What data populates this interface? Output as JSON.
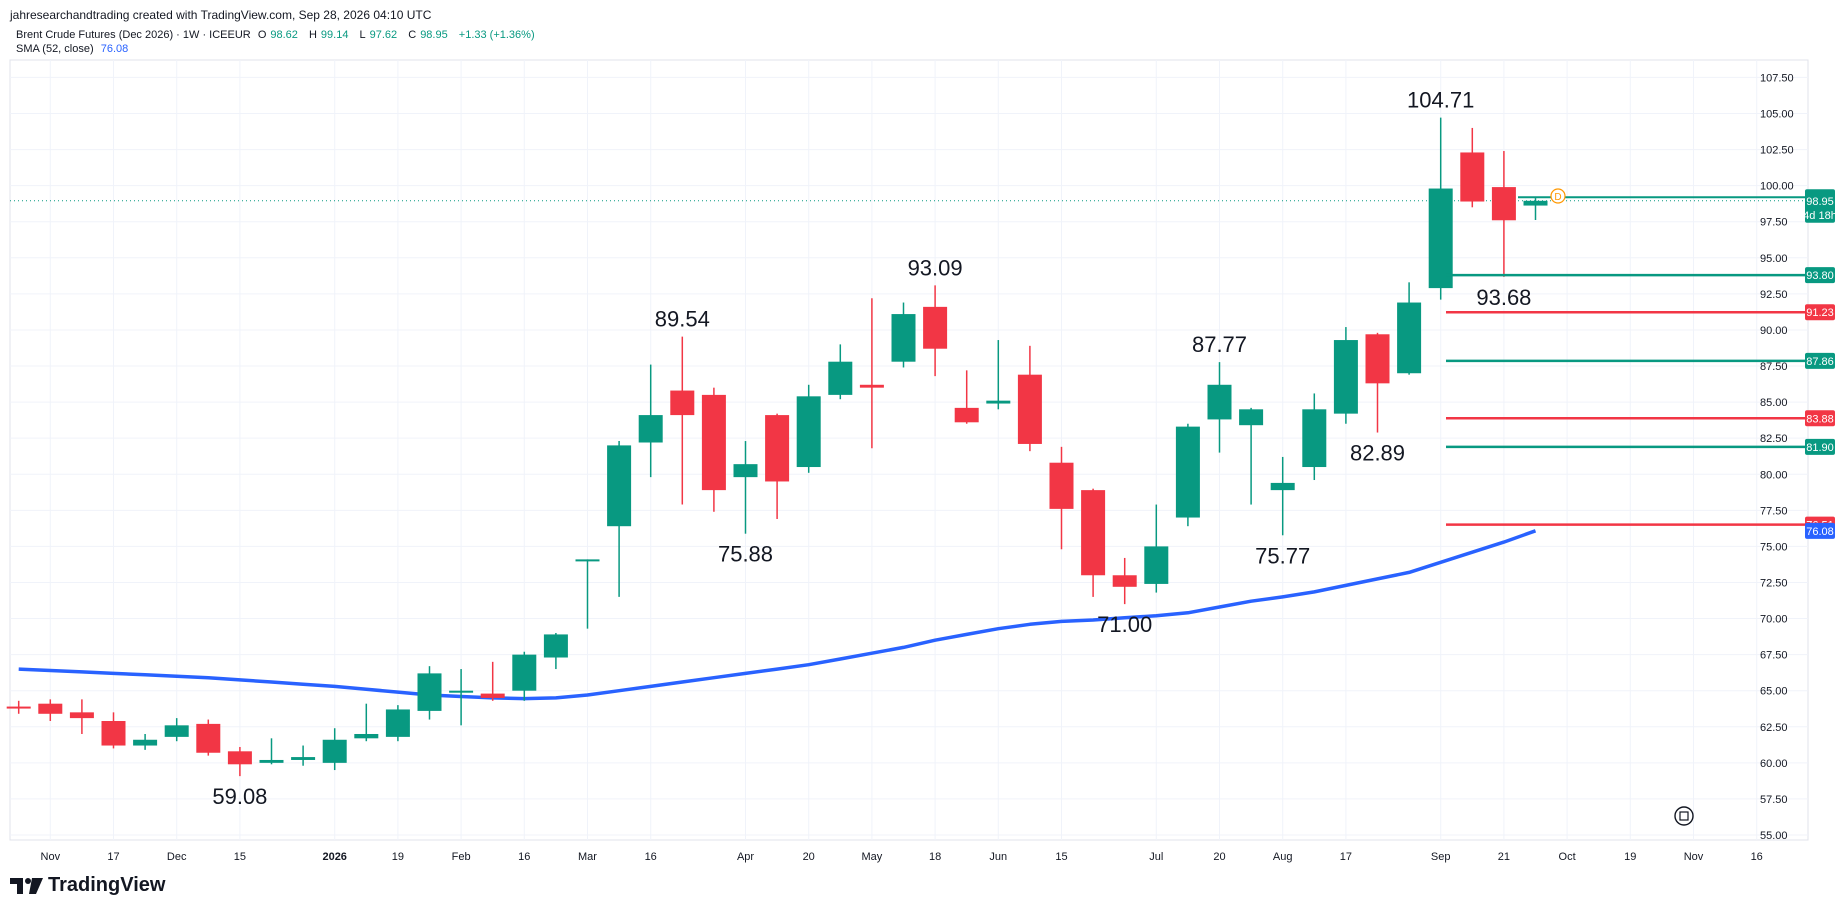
{
  "header": {
    "credit": "jahresearchandtrading created with TradingView.com, Sep 28, 2026 04:10 UTC"
  },
  "legend": {
    "symbol": "Brent Crude Futures (Dec 2026) · 1W · ICEEUR",
    "o_label": "O",
    "o_value": "98.62",
    "h_label": "H",
    "h_value": "99.14",
    "l_label": "L",
    "l_value": "97.62",
    "c_label": "C",
    "c_value": "98.95",
    "change": "+1.33 (+1.36%)",
    "sma_label": "SMA (52, close)",
    "sma_value": "76.08"
  },
  "footer": {
    "brand": "TradingView"
  },
  "colors": {
    "up": "#089981",
    "down": "#f23645",
    "sma": "#2962ff",
    "grid": "#f0f3fa",
    "axis_text": "#131722"
  },
  "chart_data": {
    "type": "candlestick",
    "timeframe": "1W",
    "ylim": [
      55,
      107.5
    ],
    "y_ticks": [
      "55.00",
      "57.50",
      "60.00",
      "62.50",
      "65.00",
      "67.50",
      "70.00",
      "72.50",
      "75.00",
      "77.50",
      "80.00",
      "82.50",
      "85.00",
      "87.50",
      "90.00",
      "92.50",
      "95.00",
      "97.50",
      "100.00",
      "102.50",
      "105.00",
      "107.50"
    ],
    "x_ticks": [
      {
        "i": 1,
        "label": "Nov"
      },
      {
        "i": 3,
        "label": "17"
      },
      {
        "i": 5,
        "label": "Dec"
      },
      {
        "i": 7,
        "label": "15"
      },
      {
        "i": 10,
        "label": "2026"
      },
      {
        "i": 12,
        "label": "19"
      },
      {
        "i": 14,
        "label": "Feb"
      },
      {
        "i": 16,
        "label": "16"
      },
      {
        "i": 18,
        "label": "Mar"
      },
      {
        "i": 20,
        "label": "16"
      },
      {
        "i": 23,
        "label": "Apr"
      },
      {
        "i": 25,
        "label": "20"
      },
      {
        "i": 27,
        "label": "May"
      },
      {
        "i": 29,
        "label": "18"
      },
      {
        "i": 31,
        "label": "Jun"
      },
      {
        "i": 33,
        "label": "15"
      },
      {
        "i": 36,
        "label": "Jul"
      },
      {
        "i": 38,
        "label": "20"
      },
      {
        "i": 40,
        "label": "Aug"
      },
      {
        "i": 42,
        "label": "17"
      },
      {
        "i": 45,
        "label": "Sep"
      },
      {
        "i": 47,
        "label": "21"
      },
      {
        "i": 49,
        "label": "Oct"
      },
      {
        "i": 51,
        "label": "19"
      },
      {
        "i": 53,
        "label": "Nov"
      },
      {
        "i": 55,
        "label": "16"
      }
    ],
    "candles": [
      {
        "o": 63.9,
        "h": 64.3,
        "l": 63.4,
        "c": 63.8
      },
      {
        "o": 64.1,
        "h": 64.4,
        "l": 62.9,
        "c": 63.4
      },
      {
        "o": 63.5,
        "h": 64.4,
        "l": 62.0,
        "c": 63.1
      },
      {
        "o": 62.9,
        "h": 63.5,
        "l": 61.0,
        "c": 61.2
      },
      {
        "o": 61.2,
        "h": 62.0,
        "l": 60.9,
        "c": 61.6
      },
      {
        "o": 61.8,
        "h": 63.1,
        "l": 61.5,
        "c": 62.6
      },
      {
        "o": 62.7,
        "h": 63.0,
        "l": 60.5,
        "c": 60.7
      },
      {
        "o": 60.8,
        "h": 61.1,
        "l": 59.08,
        "c": 59.9
      },
      {
        "o": 60.0,
        "h": 61.7,
        "l": 59.9,
        "c": 60.2
      },
      {
        "o": 60.2,
        "h": 61.2,
        "l": 59.8,
        "c": 60.4
      },
      {
        "o": 60.0,
        "h": 62.4,
        "l": 59.5,
        "c": 61.6
      },
      {
        "o": 61.7,
        "h": 64.1,
        "l": 61.5,
        "c": 62.0
      },
      {
        "o": 61.8,
        "h": 64.0,
        "l": 61.5,
        "c": 63.7
      },
      {
        "o": 63.6,
        "h": 66.7,
        "l": 63.0,
        "c": 66.2
      },
      {
        "o": 65.0,
        "h": 66.5,
        "l": 62.6,
        "c": 65.0
      },
      {
        "o": 64.8,
        "h": 67.0,
        "l": 64.3,
        "c": 64.5
      },
      {
        "o": 65.0,
        "h": 67.7,
        "l": 64.3,
        "c": 67.5
      },
      {
        "o": 67.3,
        "h": 69.0,
        "l": 66.5,
        "c": 68.9
      },
      {
        "o": 74.0,
        "h": 74.1,
        "l": 69.3,
        "c": 74.1
      },
      {
        "o": 76.4,
        "h": 82.3,
        "l": 71.5,
        "c": 82.0
      },
      {
        "o": 82.2,
        "h": 87.6,
        "l": 79.8,
        "c": 84.1
      },
      {
        "o": 85.8,
        "h": 89.54,
        "l": 77.9,
        "c": 84.1
      },
      {
        "o": 85.5,
        "h": 86.0,
        "l": 77.4,
        "c": 78.9
      },
      {
        "o": 79.8,
        "h": 82.3,
        "l": 75.88,
        "c": 80.7
      },
      {
        "o": 84.1,
        "h": 84.2,
        "l": 76.9,
        "c": 79.5
      },
      {
        "o": 80.5,
        "h": 86.2,
        "l": 80.1,
        "c": 85.4
      },
      {
        "o": 85.5,
        "h": 89.0,
        "l": 85.2,
        "c": 87.8
      },
      {
        "o": 86.2,
        "h": 92.2,
        "l": 81.8,
        "c": 86.0
      },
      {
        "o": 87.8,
        "h": 91.9,
        "l": 87.4,
        "c": 91.1
      },
      {
        "o": 91.6,
        "h": 93.09,
        "l": 86.8,
        "c": 88.7
      },
      {
        "o": 84.6,
        "h": 87.2,
        "l": 83.5,
        "c": 83.6
      },
      {
        "o": 84.9,
        "h": 89.3,
        "l": 84.5,
        "c": 85.1
      },
      {
        "o": 86.9,
        "h": 88.9,
        "l": 81.6,
        "c": 82.1
      },
      {
        "o": 80.8,
        "h": 81.9,
        "l": 74.8,
        "c": 77.6
      },
      {
        "o": 78.9,
        "h": 79.0,
        "l": 71.5,
        "c": 73.0
      },
      {
        "o": 73.0,
        "h": 74.2,
        "l": 71.0,
        "c": 72.2
      },
      {
        "o": 72.4,
        "h": 77.9,
        "l": 71.8,
        "c": 75.0
      },
      {
        "o": 77.0,
        "h": 83.5,
        "l": 76.4,
        "c": 83.3
      },
      {
        "o": 83.8,
        "h": 87.77,
        "l": 81.5,
        "c": 86.2
      },
      {
        "o": 83.4,
        "h": 84.6,
        "l": 77.9,
        "c": 84.5
      },
      {
        "o": 78.9,
        "h": 81.2,
        "l": 75.77,
        "c": 79.4
      },
      {
        "o": 80.5,
        "h": 85.6,
        "l": 79.6,
        "c": 84.5
      },
      {
        "o": 84.2,
        "h": 90.2,
        "l": 83.5,
        "c": 89.3
      },
      {
        "o": 89.7,
        "h": 89.8,
        "l": 82.89,
        "c": 86.3
      },
      {
        "o": 87.0,
        "h": 93.3,
        "l": 86.9,
        "c": 91.9
      },
      {
        "o": 92.9,
        "h": 104.71,
        "l": 92.1,
        "c": 99.8
      },
      {
        "o": 102.3,
        "h": 104.0,
        "l": 98.5,
        "c": 98.9
      },
      {
        "o": 99.9,
        "h": 102.4,
        "l": 93.68,
        "c": 97.6
      },
      {
        "o": 98.62,
        "h": 99.14,
        "l": 97.62,
        "c": 98.95
      }
    ],
    "sma": [
      66.5,
      66.4,
      66.3,
      66.2,
      66.1,
      66.0,
      65.9,
      65.75,
      65.6,
      65.45,
      65.3,
      65.1,
      64.9,
      64.7,
      64.6,
      64.5,
      64.45,
      64.5,
      64.7,
      65.0,
      65.3,
      65.6,
      65.9,
      66.2,
      66.5,
      66.8,
      67.2,
      67.6,
      68.0,
      68.5,
      68.9,
      69.3,
      69.6,
      69.8,
      69.9,
      70.05,
      70.2,
      70.4,
      70.8,
      71.2,
      71.5,
      71.85,
      72.3,
      72.75,
      73.2,
      73.9,
      74.6,
      75.3,
      76.08
    ],
    "annotations": [
      {
        "i": 7,
        "label": "59.08",
        "pos": "below",
        "value": 59.08
      },
      {
        "i": 21,
        "label": "89.54",
        "pos": "above",
        "value": 89.54
      },
      {
        "i": 23,
        "label": "75.88",
        "pos": "below",
        "value": 75.88
      },
      {
        "i": 29,
        "label": "93.09",
        "pos": "above",
        "value": 93.09
      },
      {
        "i": 35,
        "label": "71.00",
        "pos": "below",
        "value": 71.0
      },
      {
        "i": 38,
        "label": "87.77",
        "pos": "above",
        "value": 87.77
      },
      {
        "i": 40,
        "label": "75.77",
        "pos": "below",
        "value": 75.77
      },
      {
        "i": 43,
        "label": "82.89",
        "pos": "below",
        "value": 82.89
      },
      {
        "i": 45,
        "label": "104.71",
        "pos": "above",
        "value": 104.71
      },
      {
        "i": 47,
        "label": "93.68",
        "pos": "below",
        "value": 93.68
      }
    ],
    "levels": [
      {
        "value": 93.8,
        "color": "#089981",
        "label": "93.80"
      },
      {
        "value": 91.23,
        "color": "#f23645",
        "label": "91.23"
      },
      {
        "value": 87.86,
        "color": "#089981",
        "label": "87.86"
      },
      {
        "value": 83.88,
        "color": "#f23645",
        "label": "83.88"
      },
      {
        "value": 81.9,
        "color": "#089981",
        "label": "81.90"
      },
      {
        "value": 76.51,
        "color": "#f23645",
        "label": "76.51"
      }
    ],
    "price_badges": [
      {
        "value": 99.2,
        "label": "99.20",
        "color": "#089981"
      },
      {
        "value": 98.95,
        "label": "98.95",
        "sub": "4d 18h",
        "color": "#089981"
      },
      {
        "value": 76.08,
        "label": "76.08",
        "color": "#2962ff"
      }
    ],
    "last_price": 98.95,
    "dividend_marker": "D"
  }
}
